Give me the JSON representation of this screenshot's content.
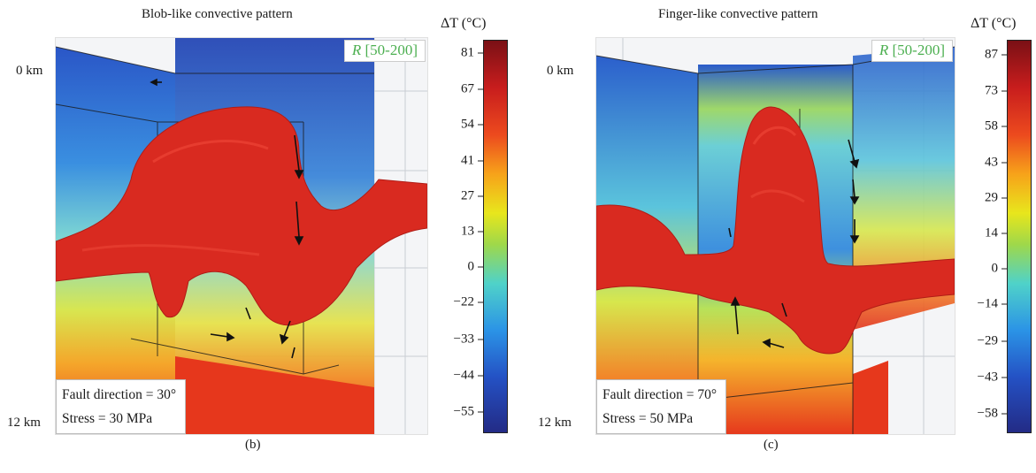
{
  "panel_b": {
    "title": "Blob-like convective pattern",
    "depth_top": "0 km",
    "depth_bottom": "12 km",
    "r_label_var": "R",
    "r_label_range": " [50-200]",
    "info_line1": "Fault direction = 30°",
    "info_line2": "Stress = 30 MPa",
    "sublabel": "(b)",
    "colorbar": {
      "title": "ΔT (°C)",
      "ticks": [
        "81",
        "67",
        "54",
        "41",
        "27",
        "13",
        "0",
        "−22",
        "−33",
        "−44",
        "−55"
      ]
    }
  },
  "panel_c": {
    "title": "Finger-like convective pattern",
    "depth_top": "0 km",
    "depth_bottom": "12 km",
    "r_label_var": "R",
    "r_label_range": " [50-200]",
    "info_line1": "Fault direction = 70°",
    "info_line2": "Stress = 50 MPa",
    "sublabel": "(c)",
    "colorbar": {
      "title": "ΔT (°C)",
      "ticks": [
        "87",
        "73",
        "58",
        "43",
        "29",
        "14",
        "0",
        "−14",
        "−29",
        "−43",
        "−58"
      ]
    }
  },
  "colors": {
    "hot": "#d92a20",
    "cold": "#2448b8",
    "accent_green": "#4caf50"
  }
}
